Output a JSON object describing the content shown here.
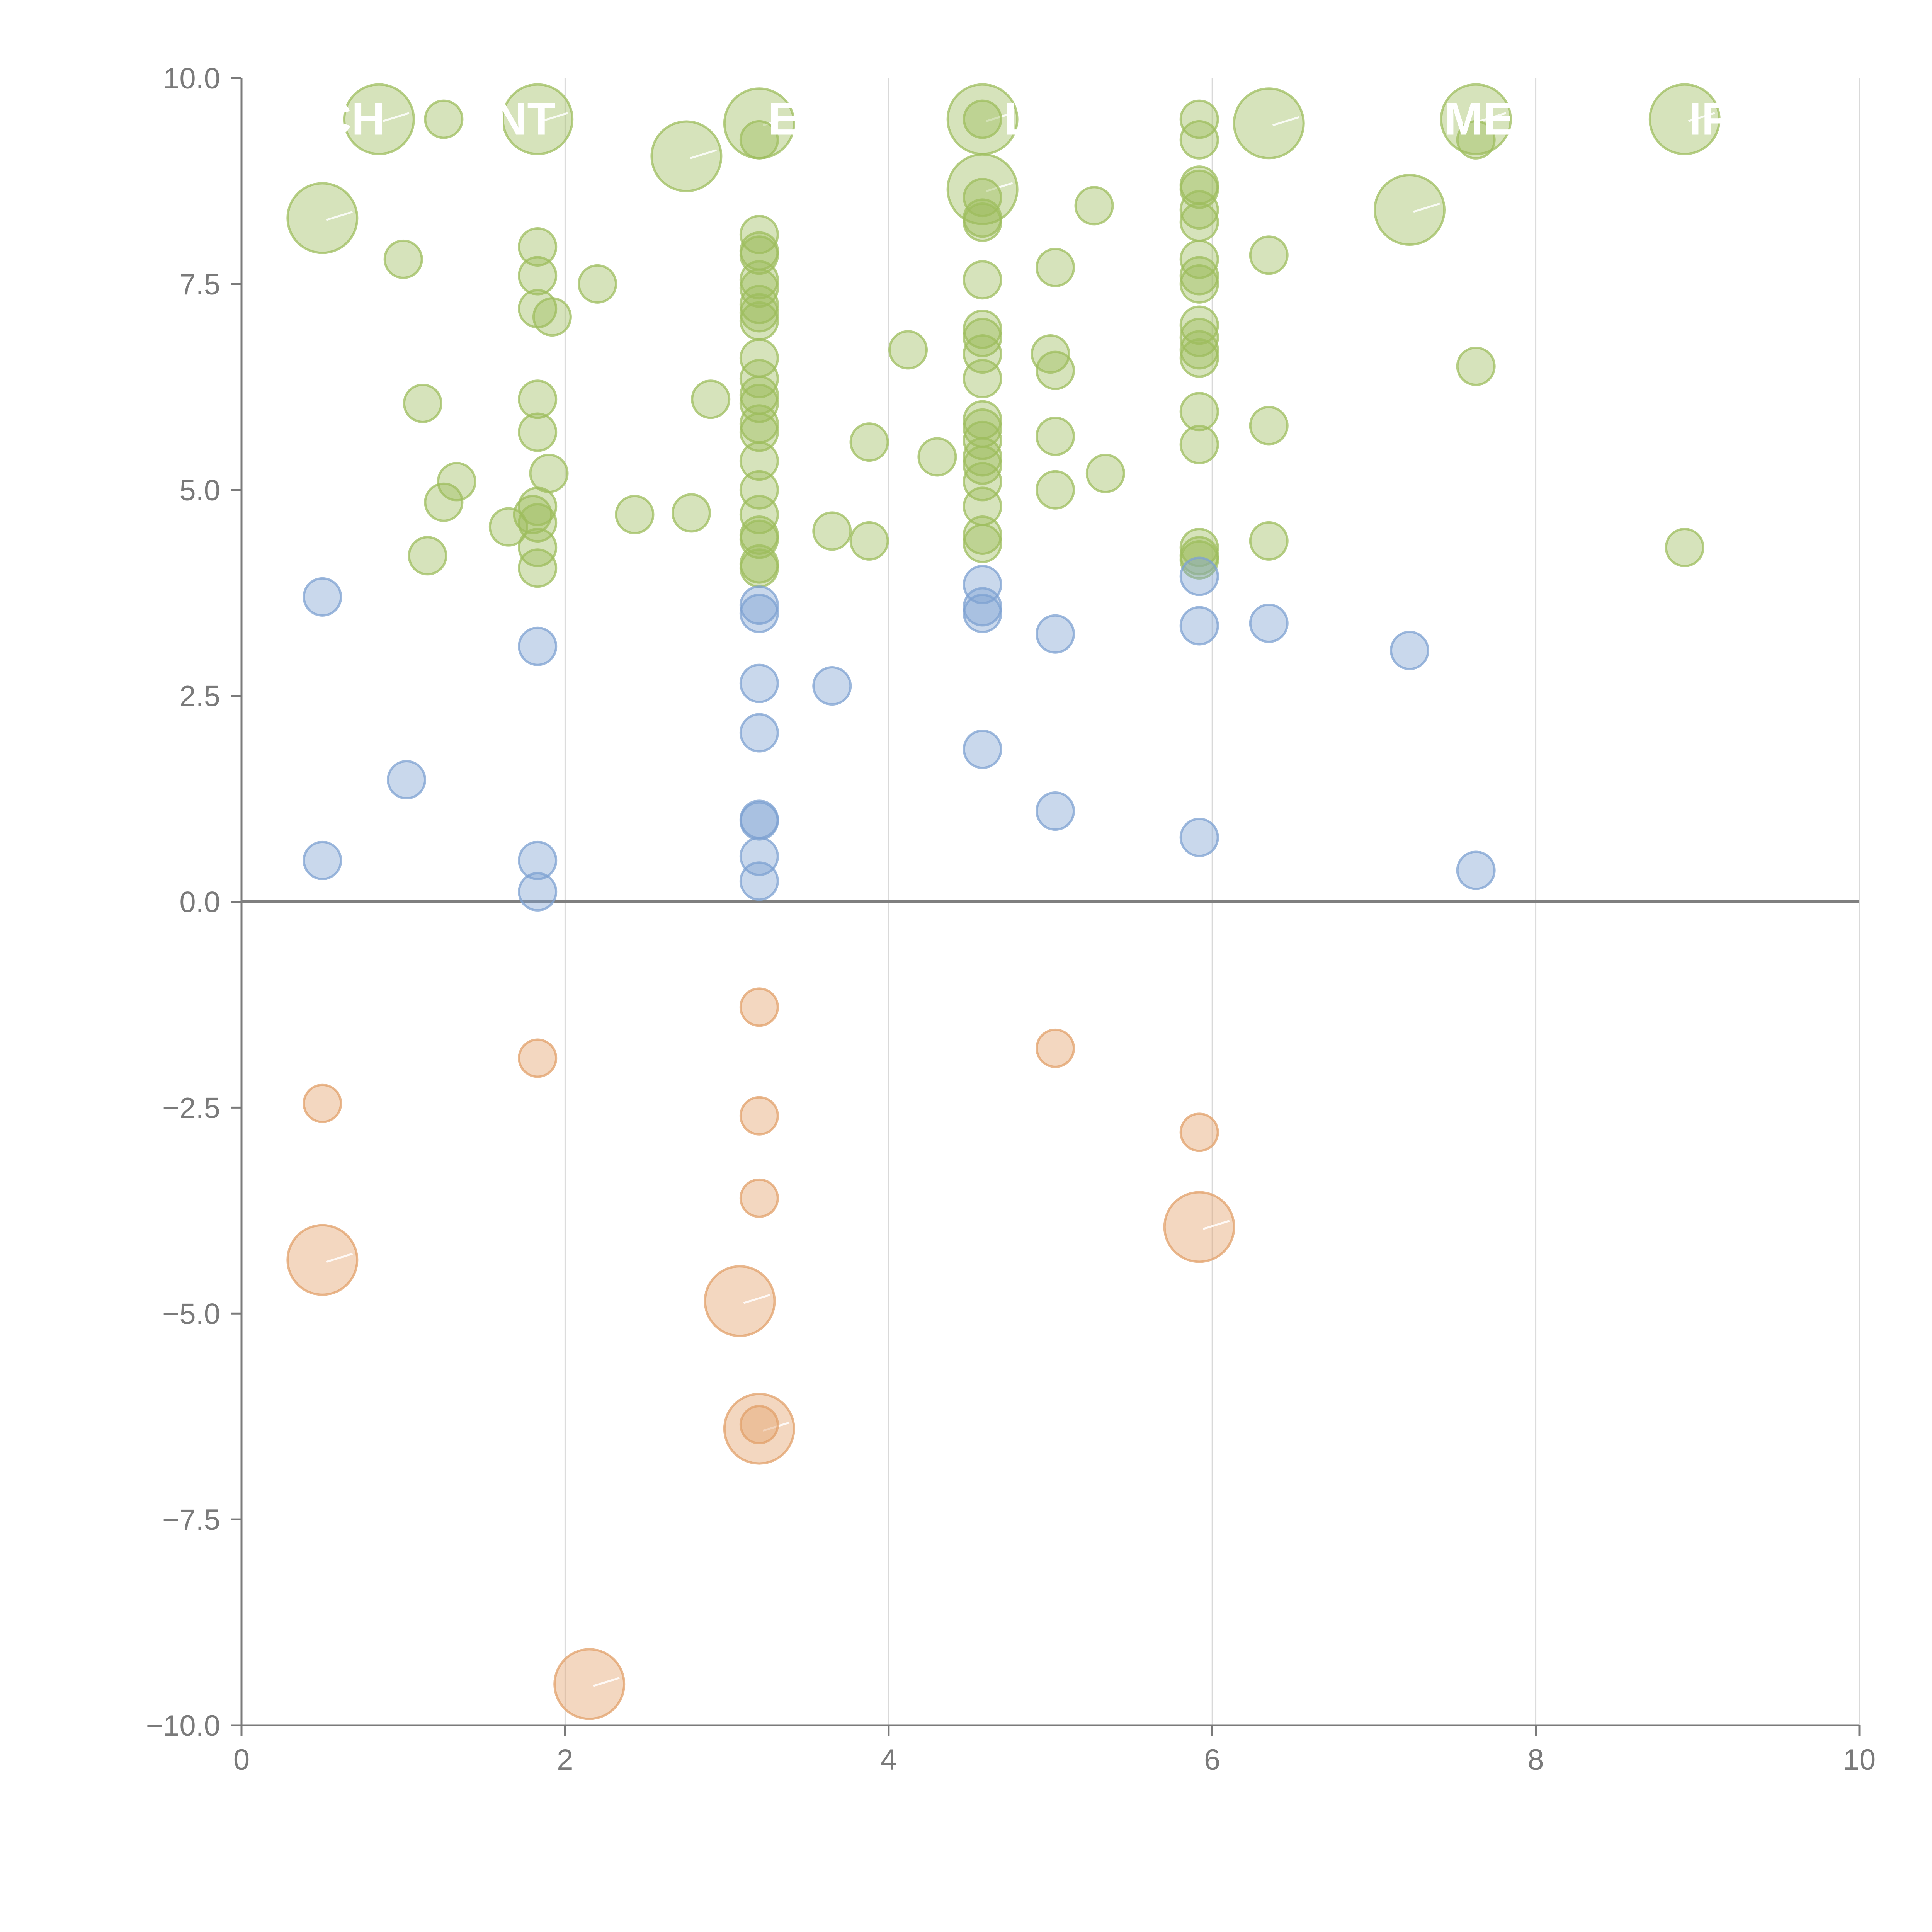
{
  "chart_data": {
    "type": "scatter",
    "title": "",
    "xlabel": "",
    "ylabel": "",
    "xlim": [
      0,
      10
    ],
    "ylim": [
      -10,
      10
    ],
    "x_ticks": [
      0,
      2,
      4,
      6,
      8,
      10
    ],
    "y_ticks": [
      -10.0,
      -7.5,
      -5.0,
      -2.5,
      0.0,
      2.5,
      5.0,
      7.5,
      10.0
    ],
    "x_tick_labels": [
      "0",
      "2",
      "4",
      "6",
      "8",
      "10"
    ],
    "y_tick_labels": [
      "−10.0",
      "−7.5",
      "−5.0",
      "−2.5",
      "0.0",
      "2.5",
      "5.0",
      "7.5",
      "10.0"
    ],
    "x_grid": true,
    "y_grid": false,
    "colors": {
      "green": "#9dbd5e",
      "blue": "#7ea2d2",
      "orange": "#e2a06a",
      "axis": "#7a7a7a",
      "zero_line": "#7f7f7f",
      "grid": "#d9d9d9"
    },
    "series": [
      {
        "name": "green",
        "color": "#9dbd5e",
        "points": [
          [
            0.5,
            8.3,
            3
          ],
          [
            0.85,
            9.5,
            3
          ],
          [
            1.0,
            7.8,
            1
          ],
          [
            1.12,
            6.05,
            1
          ],
          [
            1.15,
            4.2,
            1
          ],
          [
            1.25,
            9.5,
            1
          ],
          [
            1.25,
            4.85,
            1
          ],
          [
            1.33,
            5.1,
            1
          ],
          [
            1.65,
            4.55,
            1
          ],
          [
            1.8,
            4.7,
            1
          ],
          [
            1.83,
            9.5,
            3
          ],
          [
            1.83,
            7.95,
            1
          ],
          [
            1.83,
            7.6,
            1
          ],
          [
            1.83,
            7.2,
            1
          ],
          [
            1.83,
            6.1,
            1
          ],
          [
            1.83,
            5.7,
            1
          ],
          [
            1.83,
            4.8,
            1
          ],
          [
            1.83,
            4.6,
            1
          ],
          [
            1.83,
            4.3,
            1
          ],
          [
            1.83,
            4.05,
            1
          ],
          [
            1.9,
            5.2,
            1
          ],
          [
            1.92,
            7.1,
            1
          ],
          [
            2.2,
            7.5,
            1
          ],
          [
            2.43,
            4.7,
            1
          ],
          [
            2.75,
            9.05,
            3
          ],
          [
            2.78,
            4.72,
            1
          ],
          [
            2.9,
            6.1,
            1
          ],
          [
            3.2,
            9.45,
            3
          ],
          [
            3.2,
            9.25,
            1
          ],
          [
            3.2,
            8.1,
            1
          ],
          [
            3.2,
            7.9,
            1
          ],
          [
            3.2,
            7.85,
            1
          ],
          [
            3.2,
            7.55,
            1
          ],
          [
            3.2,
            7.45,
            1
          ],
          [
            3.2,
            7.25,
            1
          ],
          [
            3.2,
            7.15,
            1
          ],
          [
            3.2,
            7.05,
            1
          ],
          [
            3.2,
            6.6,
            1
          ],
          [
            3.2,
            6.35,
            1
          ],
          [
            3.2,
            6.15,
            1
          ],
          [
            3.2,
            6.05,
            1
          ],
          [
            3.2,
            5.8,
            1
          ],
          [
            3.2,
            5.7,
            1
          ],
          [
            3.2,
            5.35,
            1
          ],
          [
            3.2,
            5.0,
            1
          ],
          [
            3.2,
            4.7,
            1
          ],
          [
            3.2,
            4.45,
            1
          ],
          [
            3.2,
            4.4,
            1
          ],
          [
            3.2,
            4.1,
            1
          ],
          [
            3.2,
            4.05,
            1
          ],
          [
            3.65,
            4.5,
            1
          ],
          [
            3.88,
            4.38,
            1
          ],
          [
            3.88,
            5.58,
            1
          ],
          [
            4.12,
            6.7,
            1
          ],
          [
            4.3,
            5.4,
            1
          ],
          [
            4.58,
            9.5,
            3
          ],
          [
            4.58,
            9.5,
            1
          ],
          [
            4.58,
            8.65,
            3
          ],
          [
            4.58,
            8.55,
            1
          ],
          [
            4.58,
            8.3,
            1
          ],
          [
            4.58,
            8.25,
            1
          ],
          [
            4.58,
            7.55,
            1
          ],
          [
            4.58,
            6.95,
            1
          ],
          [
            4.58,
            6.85,
            1
          ],
          [
            4.58,
            6.65,
            1
          ],
          [
            4.58,
            6.35,
            1
          ],
          [
            4.58,
            5.85,
            1
          ],
          [
            4.58,
            5.75,
            1
          ],
          [
            4.58,
            5.6,
            1
          ],
          [
            4.58,
            5.4,
            1
          ],
          [
            4.58,
            5.3,
            1
          ],
          [
            4.58,
            5.1,
            1
          ],
          [
            4.58,
            4.8,
            1
          ],
          [
            4.58,
            4.45,
            1
          ],
          [
            4.58,
            4.35,
            1
          ],
          [
            5.0,
            6.65,
            1
          ],
          [
            5.03,
            7.7,
            1
          ],
          [
            5.03,
            6.45,
            1
          ],
          [
            5.03,
            5.65,
            1
          ],
          [
            5.03,
            5.0,
            1
          ],
          [
            5.27,
            8.45,
            1
          ],
          [
            5.34,
            5.2,
            1
          ],
          [
            5.92,
            9.5,
            1
          ],
          [
            5.92,
            9.25,
            1
          ],
          [
            5.92,
            8.7,
            1
          ],
          [
            5.92,
            8.65,
            1
          ],
          [
            5.92,
            8.4,
            1
          ],
          [
            5.92,
            8.25,
            1
          ],
          [
            5.92,
            7.8,
            1
          ],
          [
            5.92,
            7.6,
            1
          ],
          [
            5.92,
            7.5,
            1
          ],
          [
            5.92,
            7.0,
            1
          ],
          [
            5.92,
            6.85,
            1
          ],
          [
            5.92,
            6.7,
            1
          ],
          [
            5.92,
            6.6,
            1
          ],
          [
            5.92,
            5.95,
            1
          ],
          [
            5.92,
            5.55,
            1
          ],
          [
            5.92,
            4.3,
            1
          ],
          [
            5.92,
            4.2,
            1
          ],
          [
            5.92,
            4.15,
            1
          ],
          [
            6.35,
            9.45,
            3
          ],
          [
            6.35,
            7.85,
            1
          ],
          [
            6.35,
            5.78,
            1
          ],
          [
            6.35,
            4.38,
            1
          ],
          [
            7.22,
            8.4,
            3
          ],
          [
            7.63,
            9.5,
            3
          ],
          [
            7.63,
            9.25,
            1
          ],
          [
            7.63,
            6.5,
            1
          ],
          [
            8.92,
            9.5,
            3
          ],
          [
            8.92,
            4.3,
            1
          ]
        ]
      },
      {
        "name": "blue",
        "color": "#7ea2d2",
        "points": [
          [
            0.5,
            3.7,
            1
          ],
          [
            0.5,
            0.5,
            1
          ],
          [
            1.02,
            1.48,
            1
          ],
          [
            1.83,
            3.1,
            1
          ],
          [
            1.83,
            0.5,
            1
          ],
          [
            1.83,
            0.12,
            1
          ],
          [
            3.2,
            3.6,
            1
          ],
          [
            3.2,
            3.5,
            1
          ],
          [
            3.2,
            2.65,
            1
          ],
          [
            3.2,
            2.05,
            1
          ],
          [
            3.2,
            1.0,
            1
          ],
          [
            3.2,
            0.98,
            1
          ],
          [
            3.2,
            0.55,
            1
          ],
          [
            3.2,
            0.25,
            1
          ],
          [
            3.65,
            2.62,
            1
          ],
          [
            4.58,
            3.85,
            1
          ],
          [
            4.58,
            3.58,
            1
          ],
          [
            4.58,
            3.5,
            1
          ],
          [
            4.58,
            1.85,
            1
          ],
          [
            5.03,
            3.25,
            1
          ],
          [
            5.03,
            1.1,
            1
          ],
          [
            5.92,
            3.95,
            1
          ],
          [
            5.92,
            3.35,
            1
          ],
          [
            5.92,
            0.78,
            1
          ],
          [
            6.35,
            3.38,
            1
          ],
          [
            7.22,
            3.05,
            1
          ],
          [
            7.63,
            0.38,
            1
          ]
        ]
      },
      {
        "name": "orange",
        "color": "#e2a06a",
        "points": [
          [
            0.5,
            -2.45,
            1
          ],
          [
            0.5,
            -4.35,
            3
          ],
          [
            1.83,
            -1.9,
            1
          ],
          [
            2.15,
            -9.5,
            3
          ],
          [
            3.08,
            -4.85,
            3
          ],
          [
            3.2,
            -1.28,
            1
          ],
          [
            3.2,
            -2.6,
            1
          ],
          [
            3.2,
            -3.6,
            1
          ],
          [
            3.2,
            -6.4,
            3
          ],
          [
            3.2,
            -6.35,
            1
          ],
          [
            5.03,
            -1.78,
            1
          ],
          [
            5.92,
            -2.8,
            1
          ],
          [
            5.92,
            -3.95,
            3
          ]
        ]
      }
    ],
    "category_labels": [
      {
        "text": "CH",
        "x": 0.68,
        "y": 9.5
      },
      {
        "text": "NT",
        "x": 1.75,
        "y": 9.5
      },
      {
        "text": "E",
        "x": 3.35,
        "y": 9.5
      },
      {
        "text": "L",
        "x": 4.8,
        "y": 9.5
      },
      {
        "text": "ME",
        "x": 7.65,
        "y": 9.5
      },
      {
        "text": "IP",
        "x": 9.08,
        "y": 9.5
      }
    ]
  }
}
